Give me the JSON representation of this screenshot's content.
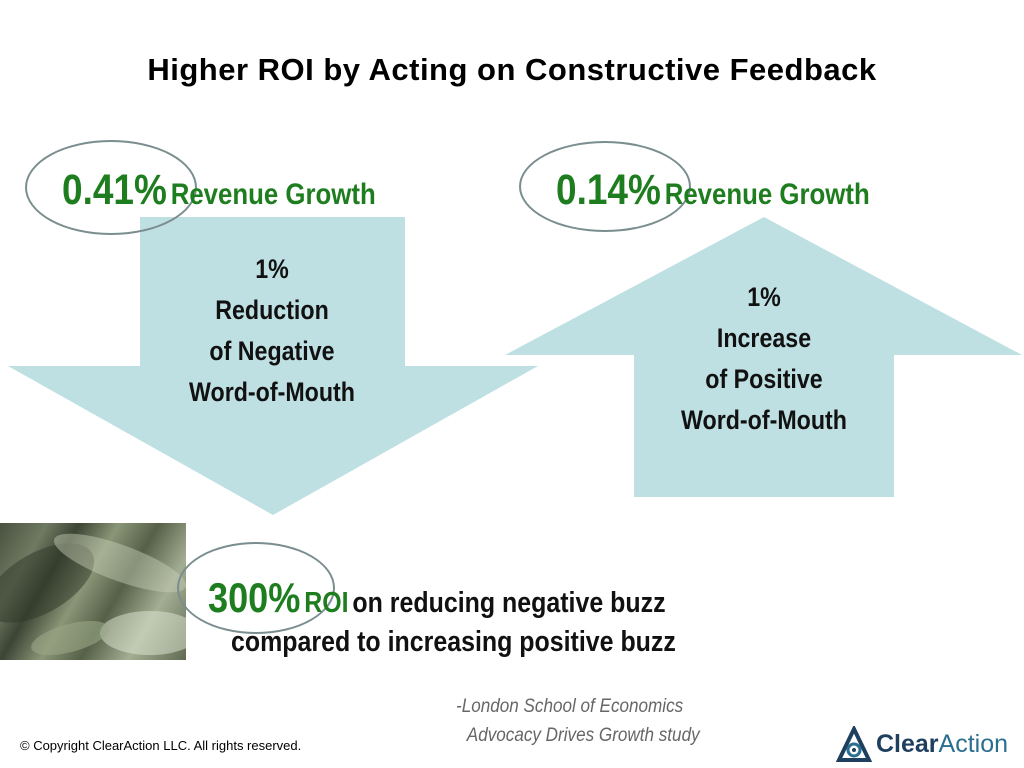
{
  "title": "Higher ROI by Acting on Constructive Feedback",
  "left_block": {
    "percent": "0.41%",
    "label": "Revenue Growth",
    "arrow_lines": [
      "1%",
      "Reduction",
      "of Negative",
      "Word-of-Mouth"
    ]
  },
  "right_block": {
    "percent": "0.14%",
    "label": "Revenue Growth",
    "arrow_lines": [
      "1%",
      "Increase",
      "of Positive",
      "Word-of-Mouth"
    ]
  },
  "roi": {
    "percent": "300%",
    "roi_word": "ROI",
    "line1_rest": "on reducing negative buzz",
    "line2": "compared to increasing positive buzz"
  },
  "source": {
    "line1": "-London School of Economics",
    "line2": "Advocacy Drives Growth study"
  },
  "footer": "© Copyright ClearAction LLC. All rights reserved.",
  "logo": {
    "part1": "Clear",
    "part2": "Action"
  },
  "colors": {
    "arrow_fill": "#bfe0e3",
    "accent_green": "#1e7d1e",
    "ellipse_stroke": "#7a8d8f"
  }
}
